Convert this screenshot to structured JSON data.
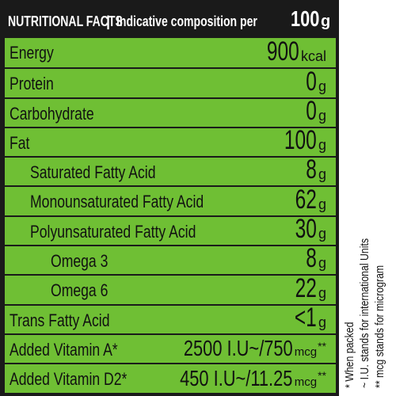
{
  "header": {
    "title": "NUTRITIONAL FACTS",
    "separator": "|",
    "description": "Indicative composition per",
    "quantity": "100",
    "unit": "g"
  },
  "rows": [
    {
      "label": "Energy",
      "value": "900",
      "unit": "kcal"
    },
    {
      "label": "Protein",
      "value": "0",
      "unit": "g"
    },
    {
      "label": "Carbohydrate",
      "value": "0",
      "unit": "g"
    },
    {
      "label": "Fat",
      "value": "100",
      "unit": "g"
    },
    {
      "label": "Saturated Fatty Acid",
      "value": "8",
      "unit": "g"
    },
    {
      "label": "Monounsaturated Fatty Acid",
      "value": "62",
      "unit": "g"
    },
    {
      "label": "Polyunsaturated Fatty Acid",
      "value": "30",
      "unit": "g"
    },
    {
      "label": "Omega 3",
      "value": "8",
      "unit": "g"
    },
    {
      "label": "Omega 6",
      "value": "22",
      "unit": "g"
    },
    {
      "label": "Trans Fatty Acid",
      "value": "<1",
      "unit": "g"
    },
    {
      "label": "Added Vitamin A*",
      "value": "2500 I.U~/750",
      "unit": "mcg",
      "mark": "**"
    },
    {
      "label": "Added Vitamin D2*",
      "value": "450 I.U~/11.25",
      "unit": "mcg",
      "mark": "**"
    }
  ],
  "footnotes": [
    "* When packed",
    "~ I.U. stands for international Units",
    "** mcg stands for microgram"
  ],
  "colors": {
    "background": "#1a1a1a",
    "row_fill": "#6fbf34",
    "text": "#111111"
  }
}
